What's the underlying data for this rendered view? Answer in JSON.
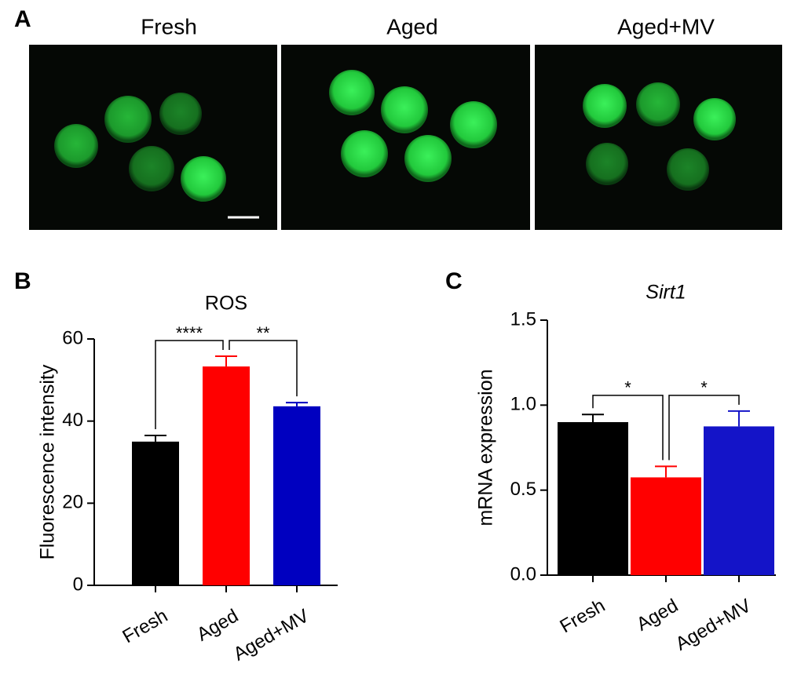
{
  "panel_a": {
    "label": "A",
    "titles": [
      "Fresh",
      "Aged",
      "Aged+MV"
    ]
  },
  "chart_data": [
    {
      "type": "bar",
      "panel_label": "B",
      "title": "ROS",
      "title_italic": false,
      "y_label": "Fluorescence intensity",
      "categories": [
        "Fresh",
        "Aged",
        "Aged+MV"
      ],
      "values": [
        35,
        53.3,
        43.6
      ],
      "errors": [
        1.5,
        2.5,
        0.9
      ],
      "colors": [
        "#000000",
        "#ff0000",
        "#0000c0"
      ],
      "ylim": [
        0,
        60
      ],
      "yticks": [
        0,
        20,
        40,
        60
      ],
      "significance": [
        {
          "label": "****",
          "from": 0,
          "to": 1
        },
        {
          "label": "**",
          "from": 1,
          "to": 2
        }
      ]
    },
    {
      "type": "bar",
      "panel_label": "C",
      "title": "Sirt1",
      "title_italic": true,
      "y_label": "mRNA expression",
      "categories": [
        "Fresh",
        "Aged",
        "Aged+MV"
      ],
      "values": [
        0.9,
        0.575,
        0.875
      ],
      "errors": [
        0.045,
        0.065,
        0.09
      ],
      "colors": [
        "#000000",
        "#ff0000",
        "#1414c8"
      ],
      "ylim": [
        0,
        1.5
      ],
      "yticks": [
        {
          "value": 0,
          "label": "0.0"
        },
        0.5,
        {
          "value": 1,
          "label": "1.0"
        },
        1.5
      ],
      "significance": [
        {
          "label": "*",
          "from": 0,
          "to": 1
        },
        {
          "label": "*",
          "from": 1,
          "to": 2
        }
      ]
    }
  ]
}
